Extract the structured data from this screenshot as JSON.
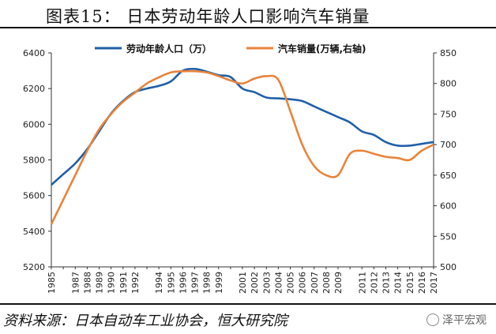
{
  "header": {
    "title": "图表15：    日本劳动年龄人口影响汽车销量"
  },
  "footer": {
    "source": "资料来源：日本自动车工业协会，恒大研究院",
    "watermark": "泽平宏观"
  },
  "chart_data": {
    "type": "line",
    "title": "",
    "x": [
      "1985",
      "1986",
      "1987",
      "1988",
      "1989",
      "1990",
      "1991",
      "1992",
      "1993",
      "1994",
      "1995",
      "1996",
      "1997",
      "1998",
      "1999",
      "2000",
      "2001",
      "2002",
      "2003",
      "2004",
      "2005",
      "2006",
      "2007",
      "2008",
      "2009",
      "2010",
      "2011",
      "2012",
      "2013",
      "2014",
      "2015",
      "2016",
      "2017"
    ],
    "x_tick_labels": [
      "1985",
      "1987",
      "1988",
      "1989",
      "1990",
      "1991",
      "1992",
      "1994",
      "1995",
      "1996",
      "1997",
      "1998",
      "1999",
      "2001",
      "2002",
      "2003",
      "2004",
      "2005",
      "2006",
      "2007",
      "2008",
      "2009",
      "2011",
      "2012",
      "2013",
      "2014",
      "2015",
      "2016",
      "2017"
    ],
    "y_left": {
      "ylim": [
        5200,
        6400
      ],
      "ticks": [
        5200,
        5400,
        5600,
        5800,
        6000,
        6200,
        6400
      ]
    },
    "y_right": {
      "ylim": [
        500,
        850
      ],
      "ticks": [
        500,
        550,
        600,
        650,
        700,
        750,
        800,
        850
      ]
    },
    "grid": false,
    "legend_position": "top",
    "series": [
      {
        "name": "劳动年龄人口（万）",
        "axis": "left",
        "color": "#1f5fa8",
        "values": [
          5660,
          5720,
          5780,
          5860,
          5960,
          6060,
          6130,
          6180,
          6200,
          6215,
          6240,
          6300,
          6310,
          6295,
          6275,
          6265,
          6200,
          6180,
          6150,
          6145,
          6140,
          6130,
          6100,
          6070,
          6040,
          6010,
          5960,
          5940,
          5900,
          5880,
          5880,
          5890,
          5900
        ]
      },
      {
        "name": "汽车销量(万辆,右轴)",
        "axis": "right",
        "color": "#e9833a",
        "values": [
          570,
          610,
          650,
          690,
          725,
          750,
          770,
          785,
          800,
          810,
          818,
          820,
          820,
          818,
          812,
          805,
          800,
          808,
          812,
          806,
          755,
          700,
          665,
          650,
          650,
          685,
          690,
          685,
          680,
          678,
          675,
          690,
          700
        ]
      }
    ]
  }
}
